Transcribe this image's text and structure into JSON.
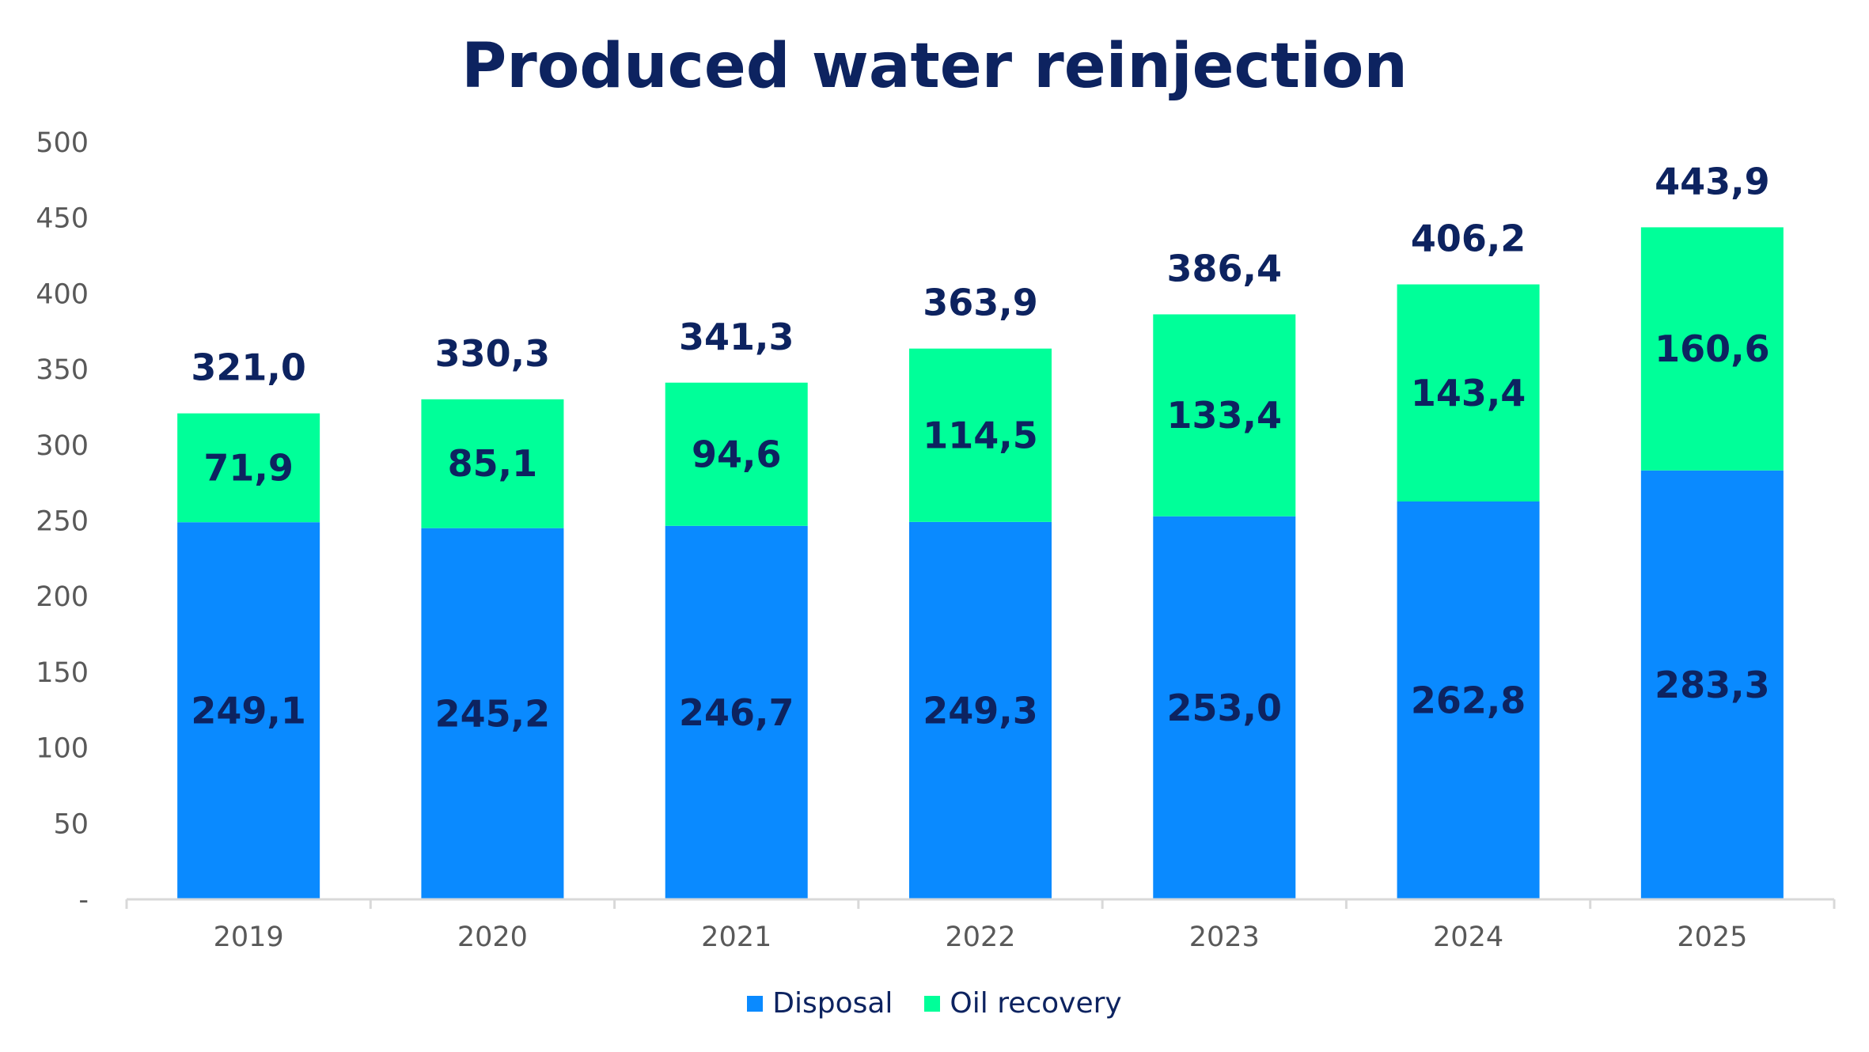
{
  "chart_data": {
    "type": "bar",
    "stacked": true,
    "title": "Produced water reinjection",
    "xlabel": "",
    "ylabel": "",
    "categories": [
      "2019",
      "2020",
      "2021",
      "2022",
      "2023",
      "2024",
      "2025"
    ],
    "series": [
      {
        "name": "Disposal",
        "color": "#0a8aff",
        "values": [
          249.1,
          245.2,
          246.7,
          249.3,
          253.0,
          262.8,
          283.3
        ],
        "labels": [
          "249,1",
          "245,2",
          "246,7",
          "249,3",
          "253,0",
          "262,8",
          "283,3"
        ]
      },
      {
        "name": "Oil recovery",
        "color": "#00ff99",
        "values": [
          71.9,
          85.1,
          94.6,
          114.5,
          133.4,
          143.4,
          160.6
        ],
        "labels": [
          "71,9",
          "85,1",
          "94,6",
          "114,5",
          "133,4",
          "143,4",
          "160,6"
        ]
      }
    ],
    "totals": [
      321.0,
      330.3,
      341.3,
      363.9,
      386.4,
      406.2,
      443.9
    ],
    "total_labels": [
      "321,0",
      "330,3",
      "341,3",
      "363,9",
      "386,4",
      "406,2",
      "443,9"
    ],
    "ylim": [
      0,
      500
    ],
    "yticks": [
      0,
      50,
      100,
      150,
      200,
      250,
      300,
      350,
      400,
      450,
      500
    ],
    "ytick_labels": [
      "-",
      "50",
      "100",
      "150",
      "200",
      "250",
      "300",
      "350",
      "400",
      "450",
      "500"
    ],
    "grid": false,
    "legend_position": "bottom",
    "axis_color": "#d9d9d9",
    "label_color": "#0d2360"
  }
}
